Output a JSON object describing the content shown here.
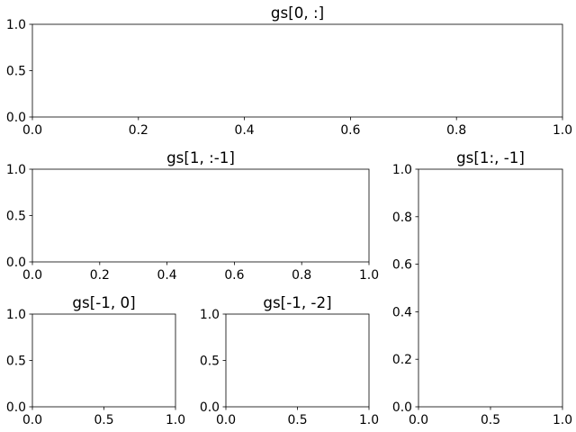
{
  "chart_data": [
    {
      "type": "line",
      "title": "gs[0, :]",
      "xlim": [
        0,
        1
      ],
      "ylim": [
        0,
        1
      ],
      "xticks": [
        "0.0",
        "0.2",
        "0.4",
        "0.6",
        "0.8",
        "1.0"
      ],
      "yticks": [
        "0.0",
        "0.5",
        "1.0"
      ],
      "series": []
    },
    {
      "type": "line",
      "title": "gs[1, :-1]",
      "xlim": [
        0,
        1
      ],
      "ylim": [
        0,
        1
      ],
      "xticks": [
        "0.0",
        "0.2",
        "0.4",
        "0.6",
        "0.8",
        "1.0"
      ],
      "yticks": [
        "0.0",
        "0.5",
        "1.0"
      ],
      "series": []
    },
    {
      "type": "line",
      "title": "gs[1:, -1]",
      "xlim": [
        0,
        1
      ],
      "ylim": [
        0,
        1
      ],
      "xticks": [
        "0.0",
        "0.5",
        "1.0"
      ],
      "yticks": [
        "0.0",
        "0.2",
        "0.4",
        "0.6",
        "0.8",
        "1.0"
      ],
      "series": []
    },
    {
      "type": "line",
      "title": "gs[-1, 0]",
      "xlim": [
        0,
        1
      ],
      "ylim": [
        0,
        1
      ],
      "xticks": [
        "0.0",
        "0.5",
        "1.0"
      ],
      "yticks": [
        "0.0",
        "0.5",
        "1.0"
      ],
      "series": []
    },
    {
      "type": "line",
      "title": "gs[-1, -2]",
      "xlim": [
        0,
        1
      ],
      "ylim": [
        0,
        1
      ],
      "xticks": [
        "0.0",
        "0.5",
        "1.0"
      ],
      "yticks": [
        "0.0",
        "0.5",
        "1.0"
      ],
      "series": []
    }
  ]
}
